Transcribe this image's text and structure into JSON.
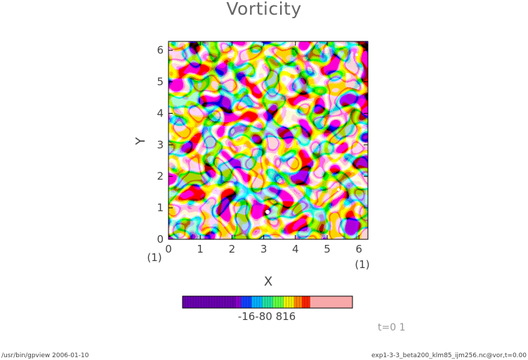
{
  "chart_data": {
    "type": "heatmap",
    "title": "Vorticity",
    "xlabel": "X",
    "ylabel": "Y",
    "x_ticks": [
      "0",
      "1",
      "2",
      "3",
      "4",
      "5",
      "6"
    ],
    "y_ticks": [
      "0",
      "1",
      "2",
      "3",
      "4",
      "5",
      "6"
    ],
    "x_unit": "(1)",
    "y_unit": "(1)",
    "xlim": [
      0,
      6.283
    ],
    "ylim": [
      0,
      6.283
    ],
    "colorbar": {
      "label": "-16  -8  0  8 16",
      "label_text": "-16-80 816",
      "min": -16,
      "max": 16,
      "colors": [
        "#6a00b0",
        "#8a00c8",
        "#1040ff",
        "#00b0ff",
        "#20e0a0",
        "#60ff40",
        "#f0f000",
        "#ff8000",
        "#ff2000",
        "#f8a8a8"
      ]
    },
    "time_label": "t=0 1"
  },
  "footer": {
    "left": "/usr/bin/gpview   2006-01-10",
    "right": "exp1-3-3_beta200_klm85_ijm256.nc@vor,t=0.00"
  }
}
